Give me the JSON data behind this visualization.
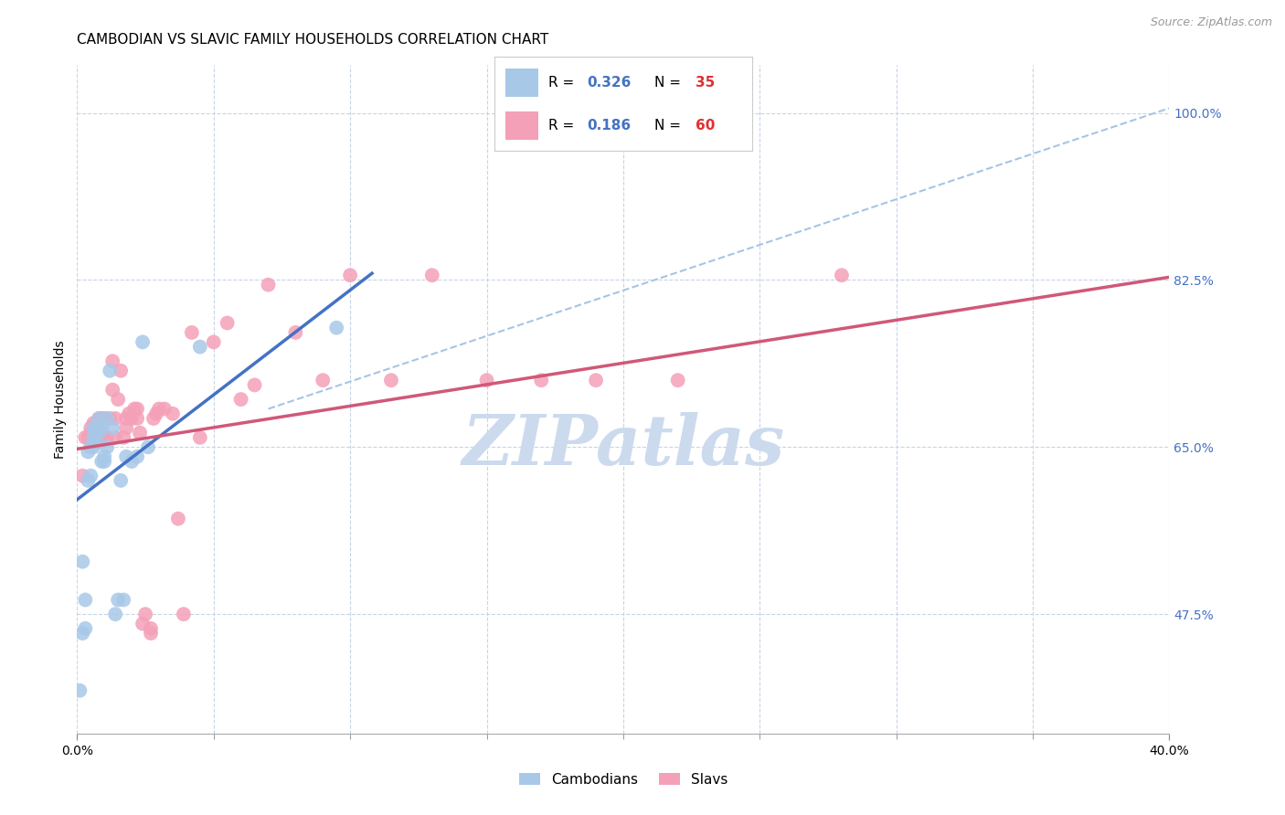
{
  "title": "CAMBODIAN VS SLAVIC FAMILY HOUSEHOLDS CORRELATION CHART",
  "source": "Source: ZipAtlas.com",
  "ylabel": "Family Households",
  "xlim": [
    0.0,
    0.4
  ],
  "ylim": [
    0.35,
    1.05
  ],
  "yticks": [
    0.475,
    0.65,
    0.825,
    1.0
  ],
  "yticklabels": [
    "47.5%",
    "65.0%",
    "82.5%",
    "100.0%"
  ],
  "xtick_positions": [
    0.0,
    0.05,
    0.1,
    0.15,
    0.2,
    0.25,
    0.3,
    0.35,
    0.4
  ],
  "cambodian_R": 0.326,
  "cambodian_N": 35,
  "slavic_R": 0.186,
  "slavic_N": 60,
  "cambodian_color": "#a8c8e8",
  "slavic_color": "#f4a0b8",
  "regression_blue": "#4472c4",
  "regression_pink": "#d05878",
  "dashed_color": "#a8c4e4",
  "legend_R_color": "#4472c4",
  "legend_N_color": "#e03030",
  "background_color": "#ffffff",
  "grid_color": "#c8d4e8",
  "watermark_color": "#ccdaee",
  "title_fontsize": 11,
  "axis_label_fontsize": 10,
  "tick_fontsize": 10,
  "cambodian_x": [
    0.001,
    0.002,
    0.002,
    0.003,
    0.003,
    0.004,
    0.004,
    0.005,
    0.005,
    0.006,
    0.006,
    0.006,
    0.007,
    0.007,
    0.008,
    0.008,
    0.009,
    0.009,
    0.01,
    0.01,
    0.011,
    0.011,
    0.012,
    0.013,
    0.014,
    0.015,
    0.016,
    0.017,
    0.018,
    0.02,
    0.022,
    0.024,
    0.026,
    0.045,
    0.095
  ],
  "cambodian_y": [
    0.395,
    0.455,
    0.53,
    0.46,
    0.49,
    0.615,
    0.645,
    0.62,
    0.65,
    0.65,
    0.66,
    0.67,
    0.655,
    0.67,
    0.665,
    0.68,
    0.635,
    0.67,
    0.635,
    0.64,
    0.65,
    0.68,
    0.73,
    0.67,
    0.475,
    0.49,
    0.615,
    0.49,
    0.64,
    0.635,
    0.64,
    0.76,
    0.65,
    0.755,
    0.775
  ],
  "slavic_x": [
    0.002,
    0.003,
    0.004,
    0.005,
    0.005,
    0.006,
    0.006,
    0.007,
    0.007,
    0.008,
    0.008,
    0.009,
    0.009,
    0.01,
    0.01,
    0.011,
    0.012,
    0.013,
    0.013,
    0.014,
    0.014,
    0.015,
    0.016,
    0.017,
    0.018,
    0.018,
    0.019,
    0.02,
    0.021,
    0.022,
    0.022,
    0.023,
    0.024,
    0.025,
    0.027,
    0.027,
    0.028,
    0.029,
    0.03,
    0.032,
    0.035,
    0.037,
    0.039,
    0.042,
    0.045,
    0.05,
    0.055,
    0.06,
    0.065,
    0.07,
    0.08,
    0.09,
    0.1,
    0.115,
    0.13,
    0.15,
    0.17,
    0.19,
    0.22,
    0.28
  ],
  "slavic_y": [
    0.62,
    0.66,
    0.66,
    0.665,
    0.67,
    0.66,
    0.675,
    0.66,
    0.67,
    0.655,
    0.68,
    0.665,
    0.68,
    0.66,
    0.68,
    0.66,
    0.68,
    0.71,
    0.74,
    0.66,
    0.68,
    0.7,
    0.73,
    0.66,
    0.67,
    0.68,
    0.685,
    0.68,
    0.69,
    0.68,
    0.69,
    0.665,
    0.465,
    0.475,
    0.46,
    0.455,
    0.68,
    0.685,
    0.69,
    0.69,
    0.685,
    0.575,
    0.475,
    0.77,
    0.66,
    0.76,
    0.78,
    0.7,
    0.715,
    0.82,
    0.77,
    0.72,
    0.83,
    0.72,
    0.83,
    0.72,
    0.72,
    0.72,
    0.72,
    0.83
  ],
  "blue_line_x": [
    0.0,
    0.108
  ],
  "blue_line_y": [
    0.595,
    0.832
  ],
  "pink_line_x": [
    0.0,
    0.4
  ],
  "pink_line_y": [
    0.648,
    0.828
  ],
  "dash_line_x": [
    0.07,
    0.4
  ],
  "dash_line_y": [
    0.69,
    1.005
  ]
}
